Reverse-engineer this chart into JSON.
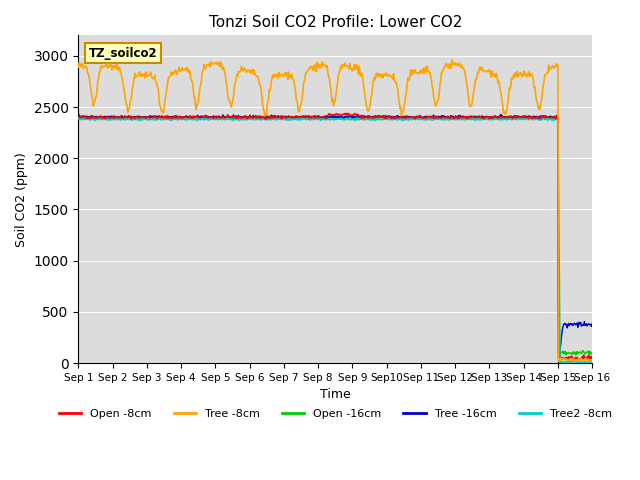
{
  "title": "Tonzi Soil CO2 Profile: Lower CO2",
  "ylabel": "Soil CO2 (ppm)",
  "xlabel": "Time",
  "ylim": [
    0,
    3200
  ],
  "yticks": [
    0,
    500,
    1000,
    1500,
    2000,
    2500,
    3000
  ],
  "xticklabels": [
    "Sep 1",
    "Sep 2",
    "Sep 3",
    "Sep 4",
    "Sep 5",
    "Sep 6",
    "Sep 7",
    "Sep 8",
    "Sep 9",
    "Sep10",
    "Sep 11",
    "Sep 12",
    "Sep 13",
    "Sep 14",
    "Sep 15",
    "Sep 16"
  ],
  "legend_labels": [
    "Open -8cm",
    "Tree -8cm",
    "Open -16cm",
    "Tree -16cm",
    "Tree2 -8cm"
  ],
  "legend_colors": [
    "#ff0000",
    "#ffa500",
    "#00cc00",
    "#0000cc",
    "#00cccc"
  ],
  "annotation_text": "TZ_soilco2",
  "plot_bg": "#dcdcdc",
  "fig_bg": "#ffffff",
  "n_days": 15,
  "pts_per_day": 48,
  "dropout_day": 14.0,
  "open8_base": 2400,
  "cyan_base": 2380,
  "open16_base": 2395,
  "tree16_base": 2405,
  "orange_peak": 2860,
  "orange_dip_depth": 380,
  "seed": 42
}
